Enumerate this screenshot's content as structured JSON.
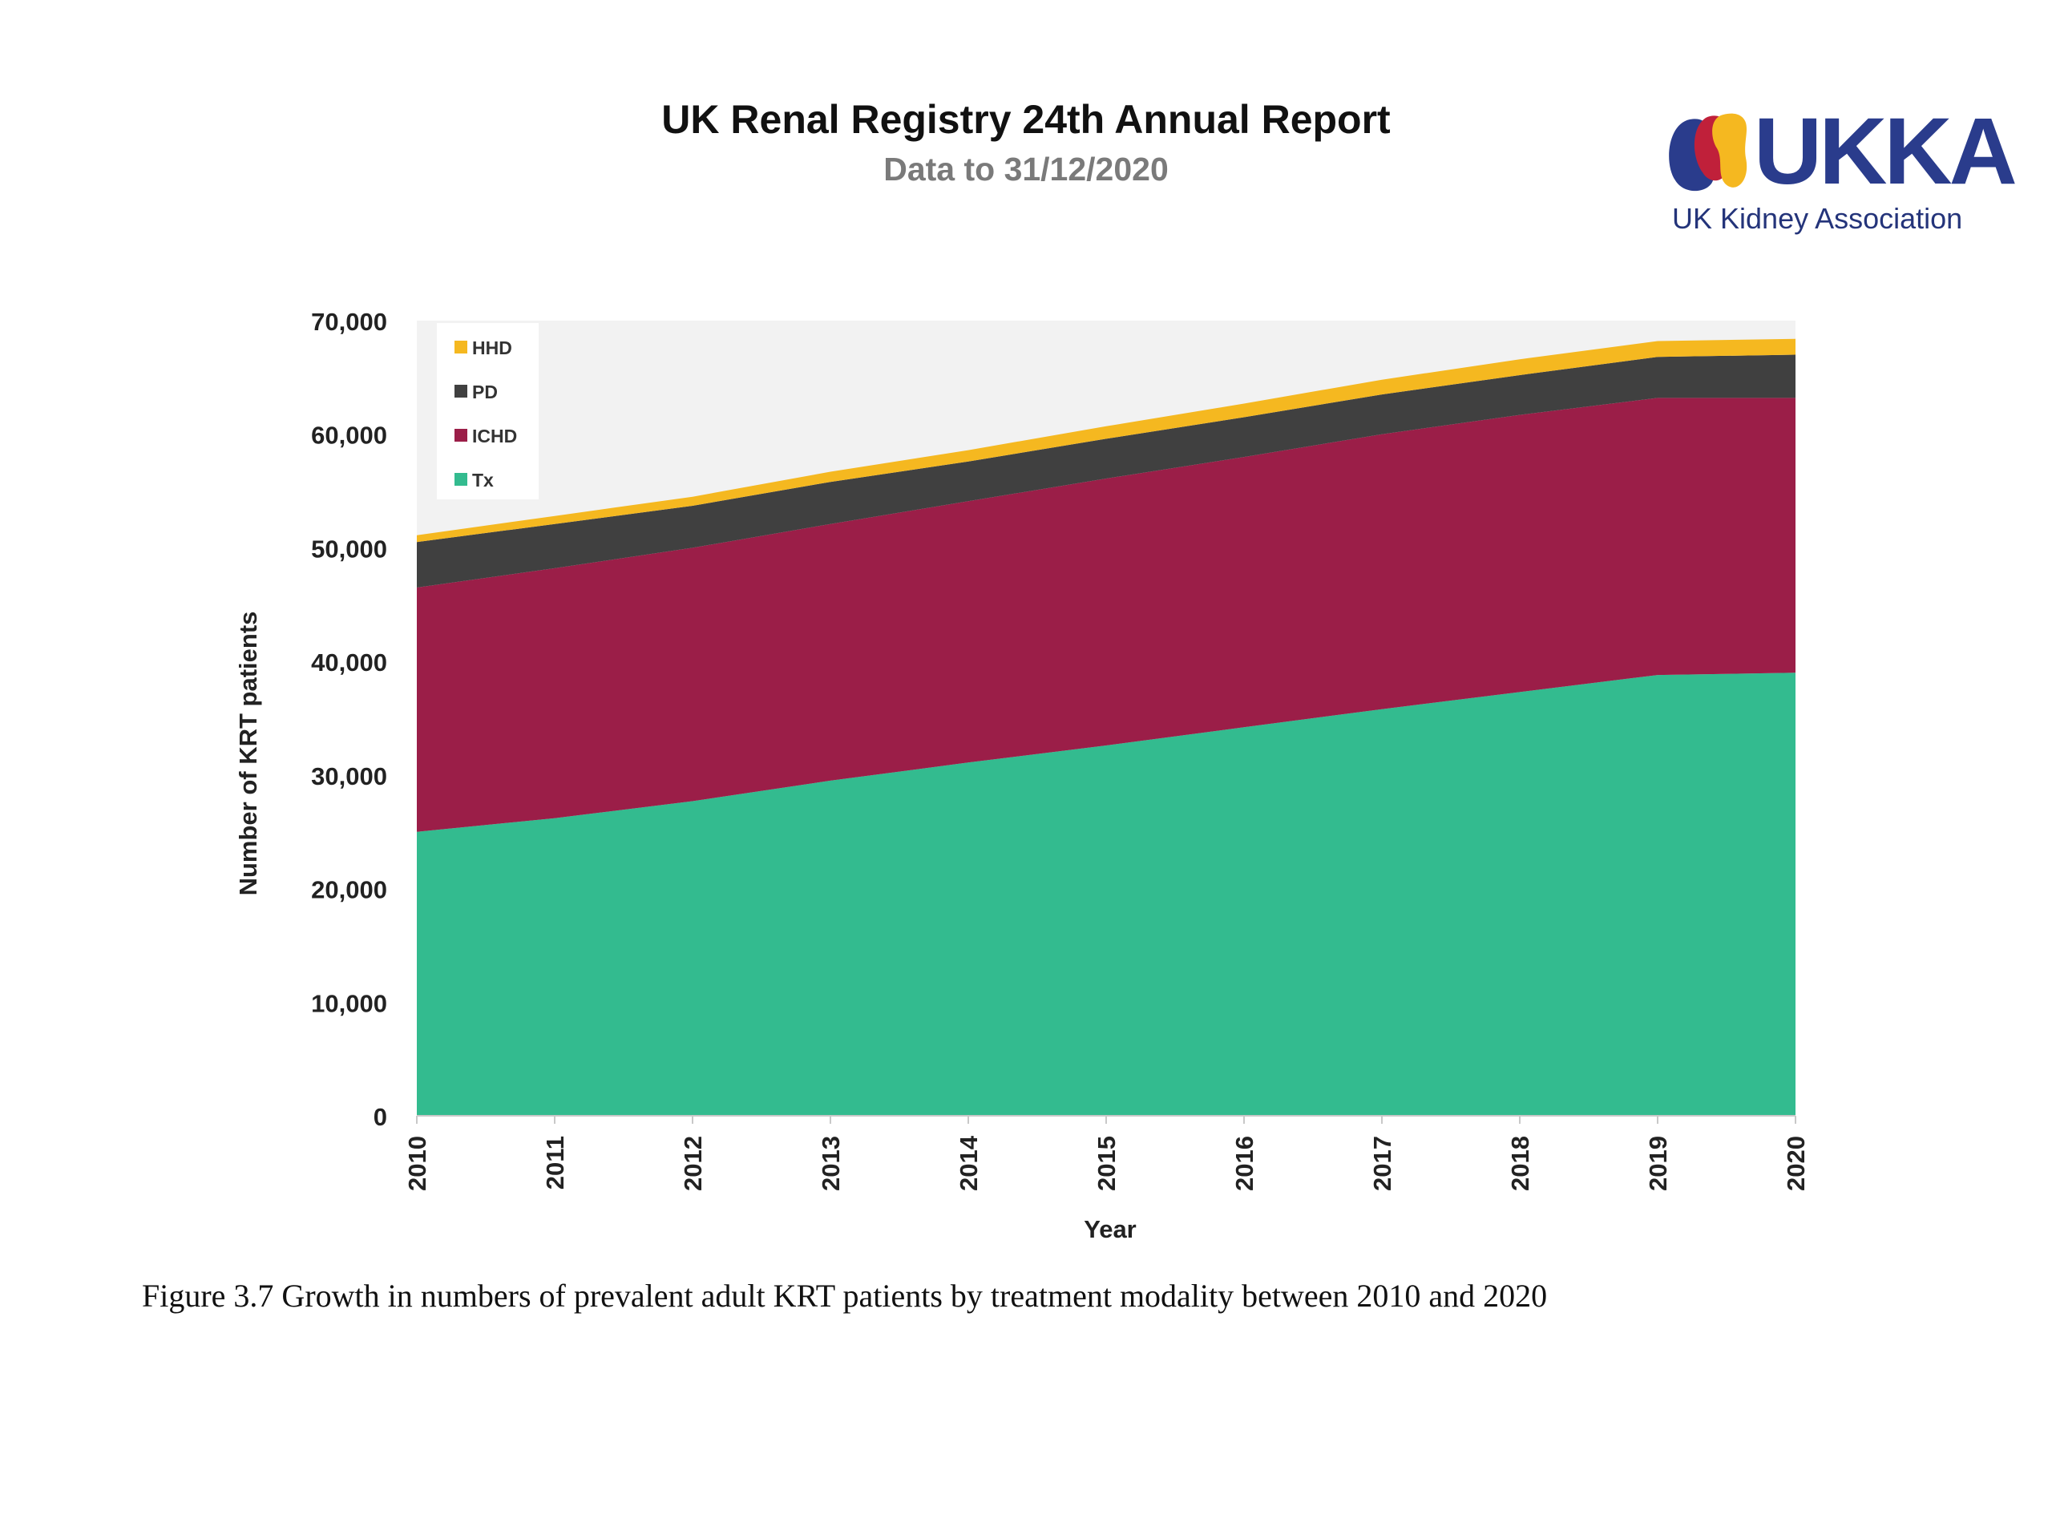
{
  "header": {
    "title": "UK Renal Registry 24th Annual Report",
    "subtitle": "Data to 31/12/2020"
  },
  "logo": {
    "wordmark": "UKKA",
    "tagline": "UK Kidney Association",
    "colors": {
      "blue": "#2a3c8c",
      "red": "#c0203a",
      "yellow": "#f5b820",
      "navy": "#24347a"
    }
  },
  "caption": "Figure 3.7 Growth in numbers of prevalent adult KRT patients by treatment modality between 2010 and 2020",
  "chart_data": {
    "type": "area",
    "stacked": true,
    "x": [
      "2010",
      "2011",
      "2012",
      "2013",
      "2014",
      "2015",
      "2016",
      "2017",
      "2018",
      "2019",
      "2020"
    ],
    "series": [
      {
        "name": "Tx",
        "color": "#33bb8f",
        "values": [
          25000,
          26200,
          27700,
          29500,
          31100,
          32600,
          34200,
          35800,
          37300,
          38800,
          39000
        ]
      },
      {
        "name": "ICHD",
        "color": "#9b1e48",
        "values": [
          21500,
          22000,
          22300,
          22600,
          23000,
          23500,
          23800,
          24200,
          24400,
          24400,
          24200
        ]
      },
      {
        "name": "PD",
        "color": "#404040",
        "values": [
          4000,
          3900,
          3700,
          3700,
          3500,
          3500,
          3500,
          3500,
          3500,
          3600,
          3800
        ]
      },
      {
        "name": "HHD",
        "color": "#f5b820",
        "values": [
          600,
          700,
          800,
          900,
          1000,
          1100,
          1200,
          1300,
          1400,
          1400,
          1400
        ]
      }
    ],
    "xlabel": "Year",
    "ylabel": "Number of KRT patients",
    "ylim": [
      0,
      70000
    ],
    "yticks": [
      "0",
      "10,000",
      "20,000",
      "30,000",
      "40,000",
      "50,000",
      "60,000",
      "70,000"
    ],
    "legend_order": [
      "HHD",
      "PD",
      "ICHD",
      "Tx"
    ],
    "legend_position": "top-left",
    "plot_background": "#f2f2f2"
  }
}
